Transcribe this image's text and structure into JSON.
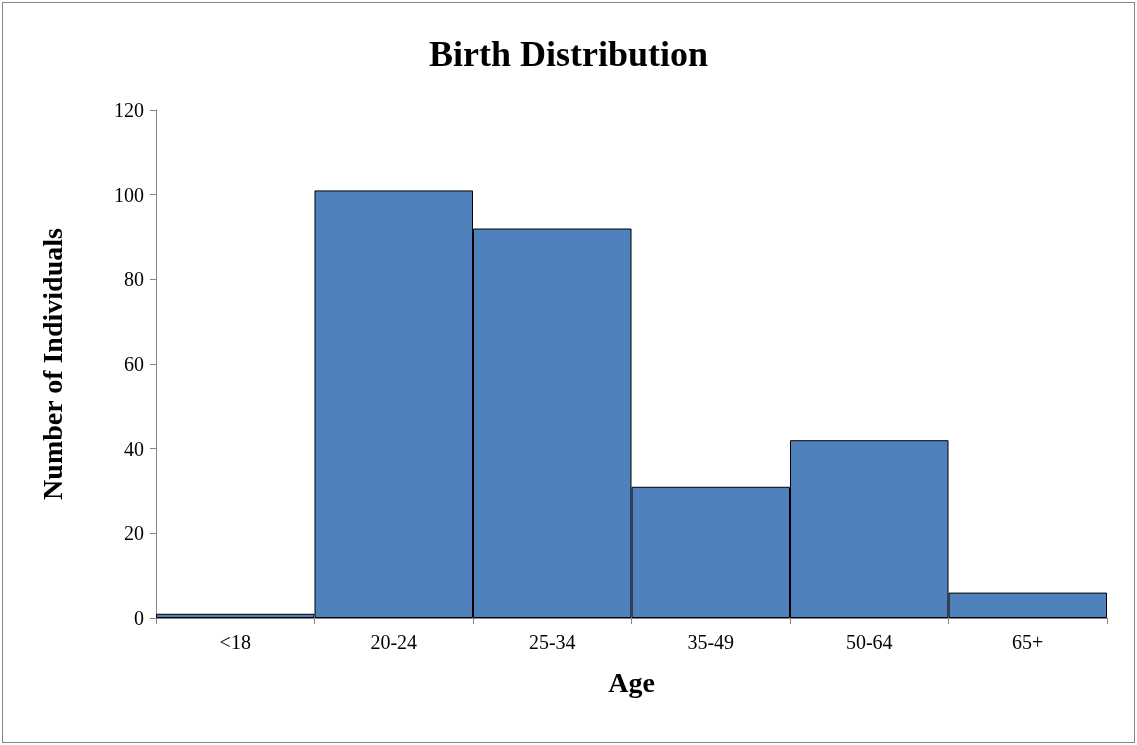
{
  "chart_data": {
    "type": "bar",
    "title": "Birth Distribution",
    "xlabel": "Age",
    "ylabel": "Number of Individuals",
    "categories": [
      "<18",
      "20-24",
      "25-34",
      "35-49",
      "50-64",
      "65+"
    ],
    "values": [
      1,
      101,
      92,
      31,
      42,
      6
    ],
    "color": "#4f81bd",
    "ylim": [
      0,
      120
    ],
    "yticks": [
      0,
      20,
      40,
      60,
      80,
      100,
      120
    ],
    "grid": false
  }
}
